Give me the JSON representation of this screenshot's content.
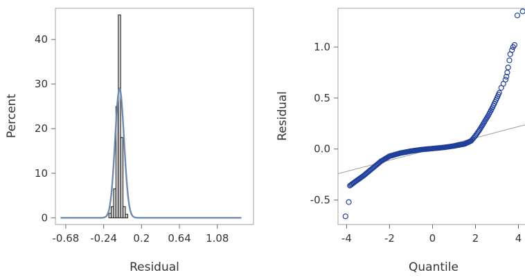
{
  "chart_data": [
    {
      "type": "bar",
      "subtype": "histogram-with-normal-curve",
      "xlabel": "Residual",
      "ylabel": "Percent",
      "xlim": [
        -0.8,
        1.5
      ],
      "ylim": [
        -1.5,
        47
      ],
      "x_ticks": [
        -0.68,
        -0.24,
        0.2,
        0.64,
        1.08
      ],
      "x_tick_labels": [
        "-0.68",
        "-0.24",
        "0.2",
        "0.64",
        "1.08"
      ],
      "y_ticks": [
        0,
        10,
        20,
        30,
        40
      ],
      "y_tick_labels": [
        "0",
        "10",
        "20",
        "30",
        "40"
      ],
      "grid": false,
      "bin_width": 0.0275,
      "bins": [
        {
          "x0": -0.18,
          "x1": -0.1525,
          "value": 1.0
        },
        {
          "x0": -0.1525,
          "x1": -0.125,
          "value": 2.5
        },
        {
          "x0": -0.125,
          "x1": -0.0975,
          "value": 6.5
        },
        {
          "x0": -0.0975,
          "x1": -0.07,
          "value": 25.0
        },
        {
          "x0": -0.07,
          "x1": -0.0425,
          "value": 45.5
        },
        {
          "x0": -0.0425,
          "x1": -0.015,
          "value": 18.0
        },
        {
          "x0": -0.015,
          "x1": 0.0125,
          "value": 2.5
        },
        {
          "x0": 0.0125,
          "x1": 0.04,
          "value": 0.8
        }
      ],
      "normal_curve": {
        "mean": -0.055,
        "sd": 0.052,
        "peak": 29.0,
        "x_range": [
          -0.74,
          1.36
        ]
      },
      "colors": {
        "bar_fill": "#d9d9d9",
        "bar_edge": "#111111",
        "curve": "#6f8bb0",
        "frame": "#a0a0a0"
      }
    },
    {
      "type": "scatter",
      "subtype": "normal-quantile-plot",
      "xlabel": "Quantile",
      "ylabel": "Residual",
      "xlim": [
        -4.4,
        4.5
      ],
      "ylim": [
        -0.74,
        1.38
      ],
      "x_ticks": [
        -4,
        -2,
        0,
        2,
        4
      ],
      "x_tick_labels": [
        "-4",
        "-2",
        "0",
        "2",
        "4"
      ],
      "y_ticks": [
        -0.5,
        0.0,
        0.5,
        1.0
      ],
      "y_tick_labels": [
        "-0.5",
        "0.0",
        "0.5",
        "1.0"
      ],
      "grid": false,
      "reference_line": {
        "intercept": 0.0,
        "slope": 0.055
      },
      "tail_points": [
        {
          "x": -4.05,
          "y": -0.66
        },
        {
          "x": -3.9,
          "y": -0.52
        },
        {
          "x": 3.7,
          "y": 0.97
        },
        {
          "x": 3.75,
          "y": 1.0
        },
        {
          "x": 3.82,
          "y": 1.02
        },
        {
          "x": 3.62,
          "y": 0.93
        },
        {
          "x": 3.58,
          "y": 0.87
        },
        {
          "x": 3.52,
          "y": 0.8
        },
        {
          "x": 3.48,
          "y": 0.75
        },
        {
          "x": 3.44,
          "y": 0.71
        },
        {
          "x": 3.4,
          "y": 0.68
        },
        {
          "x": 3.3,
          "y": 0.64
        },
        {
          "x": 3.2,
          "y": 0.6
        },
        {
          "x": 3.95,
          "y": 1.31
        },
        {
          "x": 4.2,
          "y": 1.35
        }
      ],
      "body_curve": [
        {
          "x": -3.85,
          "y": -0.36
        },
        {
          "x": -3.6,
          "y": -0.32
        },
        {
          "x": -3.2,
          "y": -0.26
        },
        {
          "x": -2.8,
          "y": -0.19
        },
        {
          "x": -2.4,
          "y": -0.12
        },
        {
          "x": -2.0,
          "y": -0.07
        },
        {
          "x": -1.5,
          "y": -0.04
        },
        {
          "x": -1.0,
          "y": -0.02
        },
        {
          "x": -0.5,
          "y": -0.005
        },
        {
          "x": 0.0,
          "y": 0.005
        },
        {
          "x": 0.5,
          "y": 0.015
        },
        {
          "x": 1.0,
          "y": 0.03
        },
        {
          "x": 1.5,
          "y": 0.05
        },
        {
          "x": 1.8,
          "y": 0.08
        },
        {
          "x": 2.0,
          "y": 0.13
        },
        {
          "x": 2.2,
          "y": 0.19
        },
        {
          "x": 2.4,
          "y": 0.26
        },
        {
          "x": 2.6,
          "y": 0.33
        },
        {
          "x": 2.8,
          "y": 0.41
        },
        {
          "x": 3.0,
          "y": 0.5
        },
        {
          "x": 3.15,
          "y": 0.57
        }
      ],
      "colors": {
        "marker": "#1f3f9a",
        "reference_line": "#9a9a9a",
        "frame": "#a0a0a0"
      }
    }
  ]
}
